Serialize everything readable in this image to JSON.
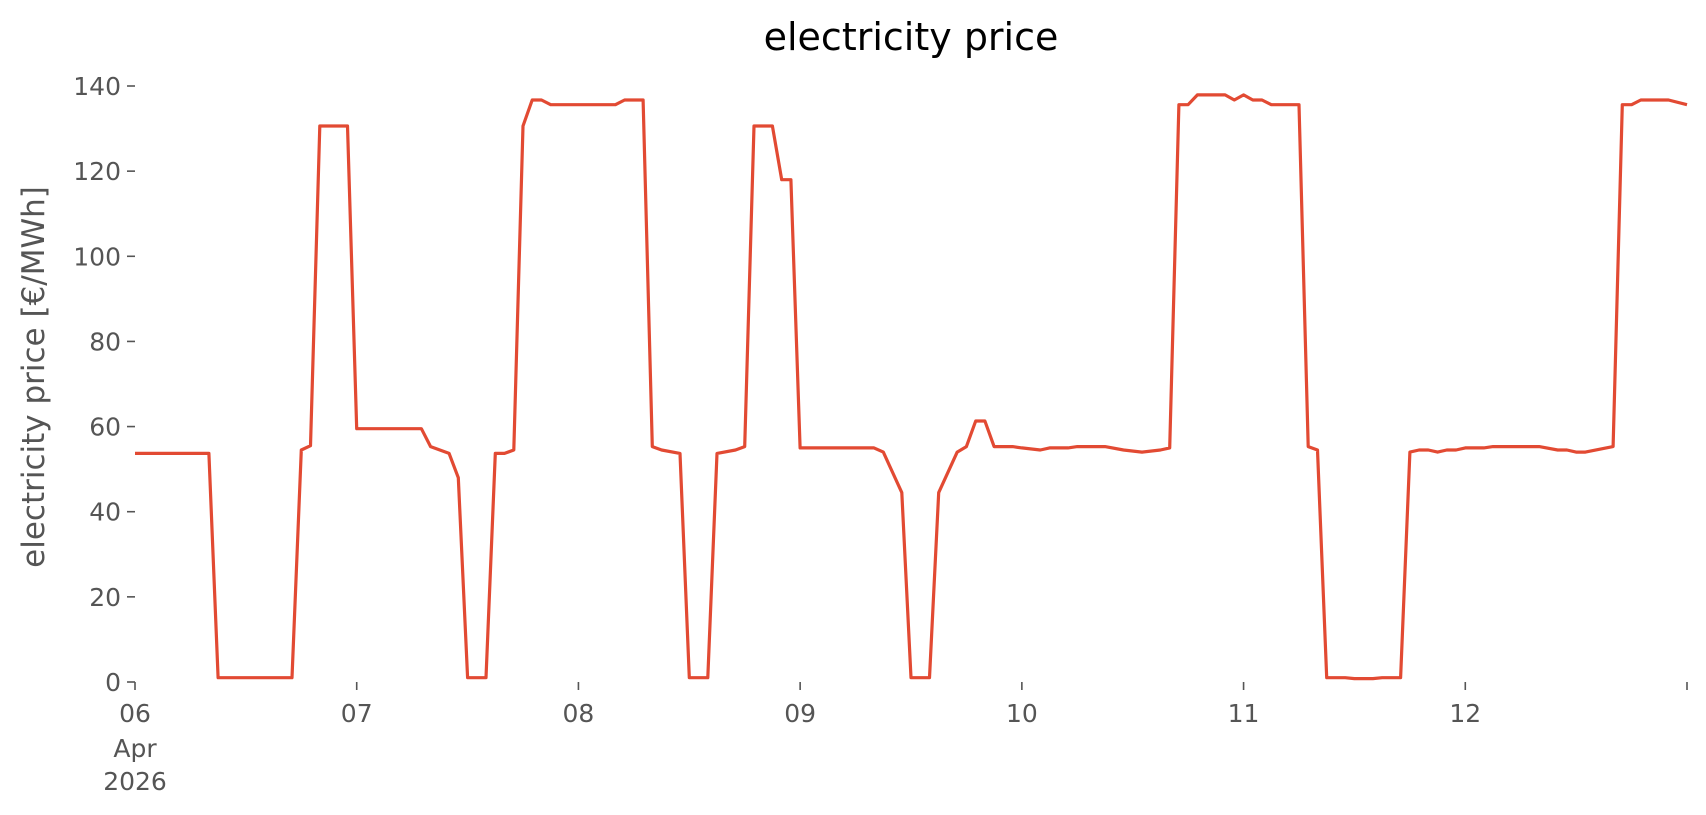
{
  "chart_data": {
    "type": "line",
    "title": "electricity price",
    "xlabel": "",
    "ylabel": "electricity price [€/MWh]",
    "ylim": [
      0,
      140
    ],
    "y_ticks": [
      0,
      20,
      40,
      60,
      80,
      100,
      120,
      140
    ],
    "xlim": [
      "2026-04-06 00:00",
      "2026-04-13 00:00"
    ],
    "x_ticks": [
      {
        "date": "2026-04-06",
        "label": "06",
        "sublabels": [
          "Apr",
          "2026"
        ]
      },
      {
        "date": "2026-04-07",
        "label": "07",
        "sublabels": []
      },
      {
        "date": "2026-04-08",
        "label": "08",
        "sublabels": []
      },
      {
        "date": "2026-04-09",
        "label": "09",
        "sublabels": []
      },
      {
        "date": "2026-04-10",
        "label": "10",
        "sublabels": []
      },
      {
        "date": "2026-04-11",
        "label": "11",
        "sublabels": []
      },
      {
        "date": "2026-04-12",
        "label": "12",
        "sublabels": []
      },
      {
        "date": "2026-04-13",
        "label": "",
        "sublabels": []
      }
    ],
    "grid": false,
    "line_color": "#e24a33",
    "series": [
      {
        "points": [
          [
            "2026-04-06 00:00",
            53.7
          ],
          [
            "2026-04-06 08:00",
            53.7
          ],
          [
            "2026-04-06 09:00",
            1.0
          ],
          [
            "2026-04-06 17:00",
            1.0
          ],
          [
            "2026-04-06 18:00",
            54.5
          ],
          [
            "2026-04-06 19:00",
            55.5
          ],
          [
            "2026-04-06 20:00",
            130.6
          ],
          [
            "2026-04-06 23:00",
            130.6
          ],
          [
            "2026-04-07 00:00",
            59.5
          ],
          [
            "2026-04-07 07:00",
            59.5
          ],
          [
            "2026-04-07 08:00",
            55.3
          ],
          [
            "2026-04-07 10:00",
            53.7
          ],
          [
            "2026-04-07 11:00",
            48.0
          ],
          [
            "2026-04-07 12:00",
            1.0
          ],
          [
            "2026-04-07 14:00",
            1.0
          ],
          [
            "2026-04-07 15:00",
            53.7
          ],
          [
            "2026-04-07 16:00",
            53.7
          ],
          [
            "2026-04-07 17:00",
            54.5
          ],
          [
            "2026-04-07 18:00",
            130.6
          ],
          [
            "2026-04-07 19:00",
            136.7
          ],
          [
            "2026-04-07 20:00",
            136.7
          ],
          [
            "2026-04-07 21:00",
            135.6
          ],
          [
            "2026-04-08 04:00",
            135.6
          ],
          [
            "2026-04-08 05:00",
            136.7
          ],
          [
            "2026-04-08 07:00",
            136.7
          ],
          [
            "2026-04-08 08:00",
            55.3
          ],
          [
            "2026-04-08 09:00",
            54.5
          ],
          [
            "2026-04-08 11:00",
            53.7
          ],
          [
            "2026-04-08 12:00",
            1.0
          ],
          [
            "2026-04-08 14:00",
            1.0
          ],
          [
            "2026-04-08 15:00",
            53.7
          ],
          [
            "2026-04-08 17:00",
            54.5
          ],
          [
            "2026-04-08 18:00",
            55.3
          ],
          [
            "2026-04-08 19:00",
            130.6
          ],
          [
            "2026-04-08 21:00",
            130.6
          ],
          [
            "2026-04-08 22:00",
            118.0
          ],
          [
            "2026-04-08 23:00",
            118.0
          ],
          [
            "2026-04-09 00:00",
            55.0
          ],
          [
            "2026-04-09 08:00",
            55.0
          ],
          [
            "2026-04-09 09:00",
            54.0
          ],
          [
            "2026-04-09 11:00",
            44.5
          ],
          [
            "2026-04-09 12:00",
            1.0
          ],
          [
            "2026-04-09 14:00",
            1.0
          ],
          [
            "2026-04-09 15:00",
            44.5
          ],
          [
            "2026-04-09 17:00",
            54.0
          ],
          [
            "2026-04-09 18:00",
            55.3
          ],
          [
            "2026-04-09 19:00",
            61.3
          ],
          [
            "2026-04-09 20:00",
            61.3
          ],
          [
            "2026-04-09 21:00",
            55.3
          ],
          [
            "2026-04-09 23:00",
            55.3
          ],
          [
            "2026-04-10 00:00",
            55.0
          ],
          [
            "2026-04-10 02:00",
            54.5
          ],
          [
            "2026-04-10 03:00",
            55.0
          ],
          [
            "2026-04-10 05:00",
            55.0
          ],
          [
            "2026-04-10 06:00",
            55.3
          ],
          [
            "2026-04-10 09:00",
            55.3
          ],
          [
            "2026-04-10 11:00",
            54.5
          ],
          [
            "2026-04-10 13:00",
            54.0
          ],
          [
            "2026-04-10 15:00",
            54.5
          ],
          [
            "2026-04-10 16:00",
            55.0
          ],
          [
            "2026-04-10 17:00",
            135.6
          ],
          [
            "2026-04-10 18:00",
            135.6
          ],
          [
            "2026-04-10 19:00",
            137.9
          ],
          [
            "2026-04-10 22:00",
            137.9
          ],
          [
            "2026-04-10 23:00",
            136.7
          ],
          [
            "2026-04-11 00:00",
            137.9
          ],
          [
            "2026-04-11 01:00",
            136.7
          ],
          [
            "2026-04-11 02:00",
            136.7
          ],
          [
            "2026-04-11 03:00",
            135.6
          ],
          [
            "2026-04-11 06:00",
            135.6
          ],
          [
            "2026-04-11 07:00",
            55.3
          ],
          [
            "2026-04-11 08:00",
            54.5
          ],
          [
            "2026-04-11 09:00",
            1.0
          ],
          [
            "2026-04-11 11:00",
            1.0
          ],
          [
            "2026-04-11 12:00",
            0.8
          ],
          [
            "2026-04-11 14:00",
            0.8
          ],
          [
            "2026-04-11 15:00",
            1.0
          ],
          [
            "2026-04-11 17:00",
            1.0
          ],
          [
            "2026-04-11 18:00",
            54.0
          ],
          [
            "2026-04-11 19:00",
            54.5
          ],
          [
            "2026-04-11 20:00",
            54.5
          ],
          [
            "2026-04-11 21:00",
            54.0
          ],
          [
            "2026-04-11 22:00",
            54.5
          ],
          [
            "2026-04-11 23:00",
            54.5
          ],
          [
            "2026-04-12 00:00",
            55.0
          ],
          [
            "2026-04-12 02:00",
            55.0
          ],
          [
            "2026-04-12 03:00",
            55.3
          ],
          [
            "2026-04-12 08:00",
            55.3
          ],
          [
            "2026-04-12 10:00",
            54.5
          ],
          [
            "2026-04-12 11:00",
            54.5
          ],
          [
            "2026-04-12 12:00",
            54.0
          ],
          [
            "2026-04-12 13:00",
            54.0
          ],
          [
            "2026-04-12 16:00",
            55.3
          ],
          [
            "2026-04-12 17:00",
            135.6
          ],
          [
            "2026-04-12 18:00",
            135.6
          ],
          [
            "2026-04-12 19:00",
            136.7
          ],
          [
            "2026-04-12 22:00",
            136.7
          ],
          [
            "2026-04-13 00:00",
            135.6
          ]
        ]
      }
    ]
  }
}
